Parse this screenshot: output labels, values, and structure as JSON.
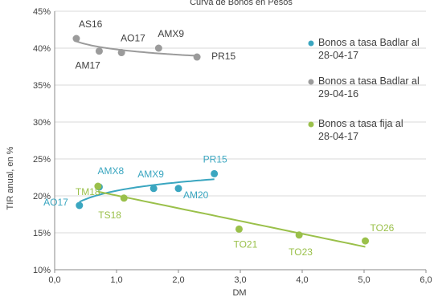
{
  "chart_data": {
    "type": "scatter",
    "title": "Curva de Bonos en Pesos",
    "xlabel": "DM",
    "ylabel": "TIR anual, en %",
    "xlim": [
      0,
      6
    ],
    "ylim": [
      10,
      45
    ],
    "x_ticks": [
      "0,0",
      "1,0",
      "2,0",
      "3,0",
      "4,0",
      "5,0",
      "6,0"
    ],
    "y_ticks": [
      "10%",
      "15%",
      "20%",
      "25%",
      "30%",
      "35%",
      "40%",
      "45%"
    ],
    "legend_position": "right",
    "series": [
      {
        "name": "Bonos a tasa Badlar al 28-04-17",
        "color": "#3aa6c0",
        "points": [
          {
            "label": "AO17",
            "x": 0.4,
            "y": 18.7
          },
          {
            "label": "AMX8",
            "x": 0.72,
            "y": 21.2
          },
          {
            "label": "AMX9",
            "x": 1.6,
            "y": 21.0
          },
          {
            "label": "AM20",
            "x": 2.0,
            "y": 21.0
          },
          {
            "label": "PR15",
            "x": 2.58,
            "y": 23.0
          }
        ]
      },
      {
        "name": "Bonos a tasa Badlar al 29-04-16",
        "color": "#9b9b9b",
        "points": [
          {
            "label": "AS16",
            "x": 0.35,
            "y": 41.3
          },
          {
            "label": "AM17",
            "x": 0.72,
            "y": 39.6
          },
          {
            "label": "AO17",
            "x": 1.08,
            "y": 39.4
          },
          {
            "label": "AMX9",
            "x": 1.68,
            "y": 40.0
          },
          {
            "label": "PR15",
            "x": 2.3,
            "y": 38.8
          }
        ]
      },
      {
        "name": "Bonos a tasa fija al 28-04-17",
        "color": "#9ac04a",
        "points": [
          {
            "label": "TM18",
            "x": 0.7,
            "y": 21.3
          },
          {
            "label": "TS18",
            "x": 1.12,
            "y": 19.7
          },
          {
            "label": "TO21",
            "x": 2.98,
            "y": 15.5
          },
          {
            "label": "TO23",
            "x": 3.95,
            "y": 14.7
          },
          {
            "label": "TO26",
            "x": 5.02,
            "y": 13.9
          }
        ]
      }
    ]
  }
}
